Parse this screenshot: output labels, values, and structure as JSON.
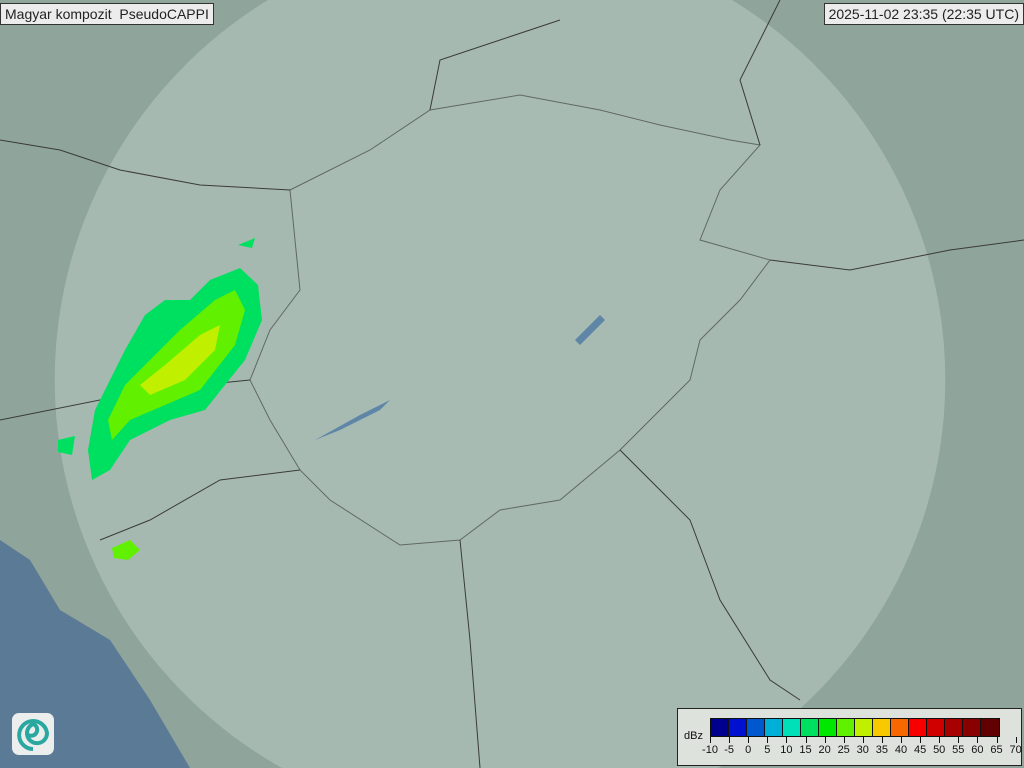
{
  "header": {
    "title": "Magyar kompozit  PseudoCAPPI",
    "timestamp": "2025-11-02 23:35 (22:35 UTC)"
  },
  "legend": {
    "unit": "dBz",
    "ticks": [
      "-10",
      "-5",
      "0",
      "5",
      "10",
      "15",
      "20",
      "25",
      "30",
      "35",
      "40",
      "45",
      "50",
      "55",
      "60",
      "65",
      "70"
    ],
    "colors": [
      "#00008f",
      "#0010d0",
      "#0058d0",
      "#00b0d8",
      "#00e0b8",
      "#00e060",
      "#00e800",
      "#60f000",
      "#c0f000",
      "#f8c800",
      "#f86800",
      "#f80000",
      "#d00000",
      "#a80000",
      "#880000",
      "#600000"
    ]
  },
  "map": {
    "land_color": "#8fa49a",
    "sea_color": "#5a7a96",
    "radar_coverage_color": "#b9cbc4",
    "echo_colors": [
      "#00e060",
      "#60f000",
      "#c0f000"
    ]
  },
  "logo": {
    "icon": "swirl-logo-icon"
  }
}
